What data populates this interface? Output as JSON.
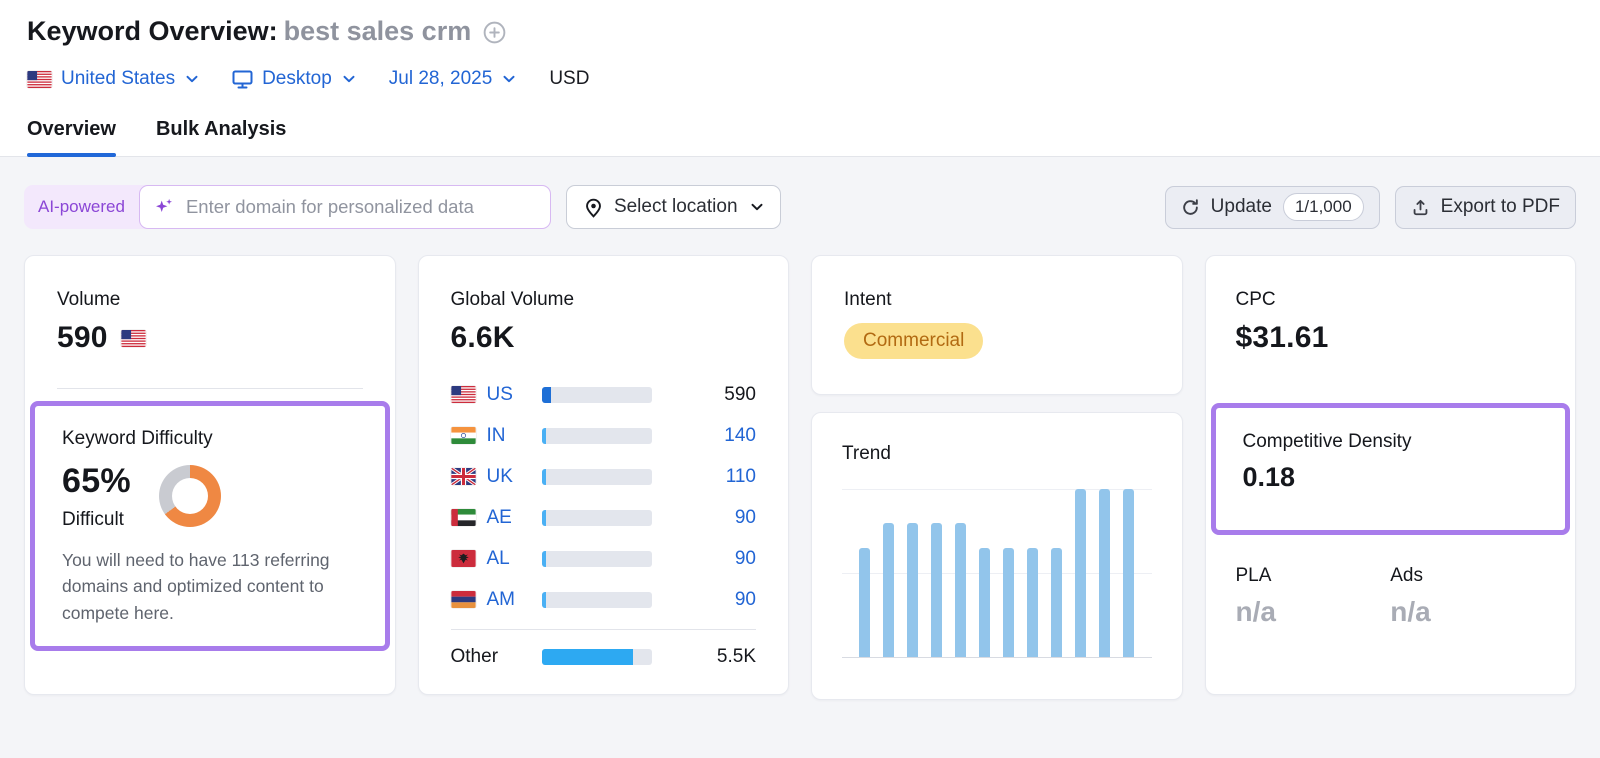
{
  "page": {
    "title": "Keyword Overview:",
    "keyword": "best sales crm"
  },
  "filters": {
    "country": "United States",
    "device": "Desktop",
    "date": "Jul 28, 2025",
    "currency": "USD"
  },
  "tabs": [
    {
      "label": "Overview",
      "active": true
    },
    {
      "label": "Bulk Analysis",
      "active": false
    }
  ],
  "toolbar": {
    "ai_badge": "AI-powered",
    "domain_placeholder": "Enter domain for personalized data",
    "select_location_label": "Select location",
    "update_label": "Update",
    "update_quota": "1/1,000",
    "export_label": "Export to PDF"
  },
  "cards": {
    "volume": {
      "label": "Volume",
      "value": "590",
      "country_code": "US"
    },
    "keyword_difficulty": {
      "label": "Keyword Difficulty",
      "percent": "65%",
      "percent_value": 65,
      "level": "Difficult",
      "description": "You will need to have 113 referring domains and optimized content to compete here."
    },
    "global_volume": {
      "label": "Global Volume",
      "value": "6.6K",
      "rows": [
        {
          "code": "US",
          "value": "590",
          "share": 0.089,
          "emphasis": true
        },
        {
          "code": "IN",
          "value": "140",
          "share": 0.021,
          "emphasis": false
        },
        {
          "code": "UK",
          "value": "110",
          "share": 0.017,
          "emphasis": false
        },
        {
          "code": "AE",
          "value": "90",
          "share": 0.014,
          "emphasis": false
        },
        {
          "code": "AL",
          "value": "90",
          "share": 0.014,
          "emphasis": false
        },
        {
          "code": "AM",
          "value": "90",
          "share": 0.014,
          "emphasis": false
        }
      ],
      "other": {
        "label": "Other",
        "value": "5.5K",
        "share": 0.83
      }
    },
    "intent": {
      "label": "Intent",
      "badge": "Commercial"
    },
    "trend": {
      "label": "Trend"
    },
    "cpc": {
      "label": "CPC",
      "value": "$31.61"
    },
    "competitive_density": {
      "label": "Competitive Density",
      "value": "0.18"
    },
    "pla": {
      "label": "PLA",
      "value": "n/a"
    },
    "ads": {
      "label": "Ads",
      "value": "n/a"
    }
  },
  "chart_data": [
    {
      "type": "bar",
      "title": "Trend",
      "x": [
        1,
        2,
        3,
        4,
        5,
        6,
        7,
        8,
        9,
        10,
        11,
        12
      ],
      "values_normalized": [
        0.65,
        0.8,
        0.8,
        0.8,
        0.8,
        0.65,
        0.65,
        0.65,
        0.65,
        1,
        1,
        1
      ],
      "ylim": [
        0,
        1
      ],
      "gridlines": [
        0.5,
        1
      ],
      "xlabel": "",
      "ylabel": "",
      "note": "12 monthly bars, no tick labels visible"
    },
    {
      "type": "pie",
      "style": "donut",
      "title": "Keyword Difficulty",
      "labels": [
        "Difficult",
        "Remaining"
      ],
      "values": [
        65,
        35
      ],
      "colors": [
        "#ef8843",
        "#c9cbd1"
      ]
    },
    {
      "type": "bar",
      "title": "Global Volume by country",
      "categories": [
        "US",
        "IN",
        "UK",
        "AE",
        "AL",
        "AM",
        "Other"
      ],
      "values": [
        590,
        140,
        110,
        90,
        90,
        90,
        5500
      ],
      "total_label": "6.6K"
    }
  ],
  "colors": {
    "accent_blue": "#2265d4",
    "highlight_purple": "#a87ceb",
    "difficulty_orange": "#ef8843",
    "donut_gray": "#c9cbd1",
    "trend_bar_blue": "#92c5eb",
    "us_bar_blue": "#1e6fd6",
    "country_bar_blue": "#4ab0f4",
    "other_bar_blue": "#2da9f2",
    "intent_badge_bg": "#fbe08e",
    "intent_badge_text": "#b26a12",
    "ai_purple": "#8b46d6",
    "na_gray": "#a9acb5"
  }
}
